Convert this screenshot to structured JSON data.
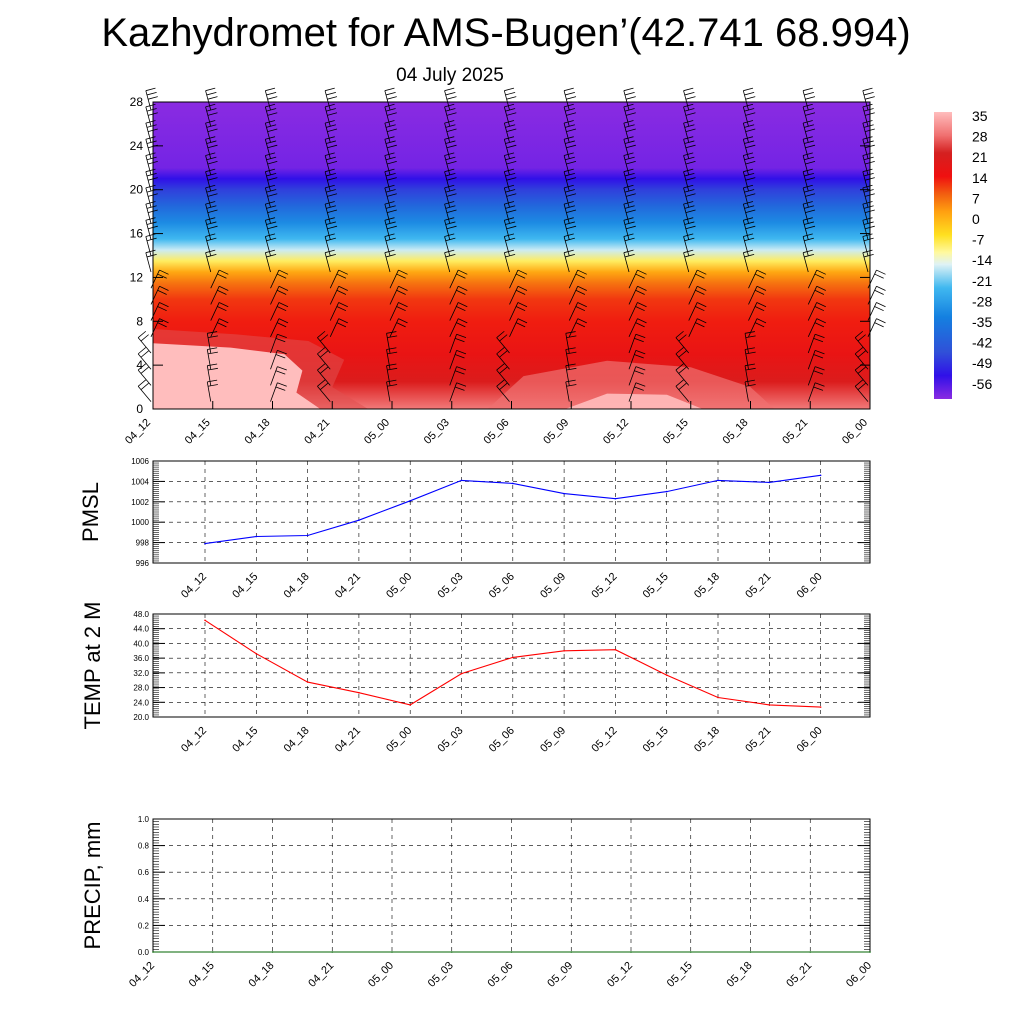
{
  "title": "Kazhydromet for AMS-Bugen’(42.741 68.994)",
  "subtitle": "04 July 2025",
  "time_labels": [
    "04_12",
    "04_15",
    "04_18",
    "04_21",
    "05_00",
    "05_03",
    "05_06",
    "05_09",
    "05_12",
    "05_15",
    "05_18",
    "05_21",
    "06_00"
  ],
  "colors": {
    "pmsl_line": "#0000ff",
    "temp_line": "#ff0000",
    "precip_line": "#006400",
    "grid": "#000000"
  },
  "chart_data": [
    {
      "id": "profile",
      "type": "heatmap",
      "title": "",
      "xlabel": "",
      "ylabel": "",
      "ylim": [
        0,
        28
      ],
      "yticks": [
        "0",
        "4",
        "8",
        "12",
        "16",
        "20",
        "24",
        "28"
      ],
      "categories": [
        "04_12",
        "04_15",
        "04_18",
        "04_21",
        "05_00",
        "05_03",
        "05_06",
        "05_09",
        "05_12",
        "05_15",
        "05_18",
        "05_21",
        "06_00"
      ],
      "overlay": "wind-barbs",
      "colorbar": {
        "labels": [
          "35",
          "28",
          "21",
          "14",
          "7",
          "0",
          "-7",
          "-14",
          "-21",
          "-28",
          "-35",
          "-42",
          "-49",
          "-56"
        ],
        "stops": [
          {
            "v": 38,
            "c": "#ffbdbd"
          },
          {
            "v": 30,
            "c": "#f07070"
          },
          {
            "v": 24,
            "c": "#d42020"
          },
          {
            "v": 16,
            "c": "#f01010"
          },
          {
            "v": 10,
            "c": "#f25e10"
          },
          {
            "v": 4,
            "c": "#ffa010"
          },
          {
            "v": -4,
            "c": "#ffe020"
          },
          {
            "v": -10,
            "c": "#fff9a0"
          },
          {
            "v": -14,
            "c": "#dff2f5"
          },
          {
            "v": -22,
            "c": "#40b8f0"
          },
          {
            "v": -32,
            "c": "#1480e0"
          },
          {
            "v": -44,
            "c": "#3050d8"
          },
          {
            "v": -52,
            "c": "#3010e8"
          },
          {
            "v": -60,
            "c": "#8a2be2"
          }
        ]
      }
    },
    {
      "id": "pmsl",
      "type": "line",
      "ylabel": "PMSL",
      "ylim": [
        996,
        1006
      ],
      "yticks": [
        "996",
        "998",
        "1000",
        "1002",
        "1004",
        "1006"
      ],
      "series": [
        {
          "values": [
            997.9,
            998.6,
            998.7,
            1000.2,
            1002.1,
            1004.1,
            1003.8,
            1002.8,
            1002.3,
            1003.0,
            1004.1,
            1003.9,
            1004.6
          ]
        }
      ]
    },
    {
      "id": "temp",
      "type": "line",
      "ylabel": "TEMP at 2 M",
      "ylim": [
        20,
        48
      ],
      "yticks": [
        "20.0",
        "24.0",
        "28.0",
        "32.0",
        "36.0",
        "40.0",
        "44.0",
        "48.0"
      ],
      "series": [
        {
          "values": [
            46.3,
            37.2,
            29.5,
            26.6,
            23.3,
            31.8,
            36.2,
            38.0,
            38.3,
            31.4,
            25.3,
            23.3,
            22.7
          ]
        }
      ]
    },
    {
      "id": "precip",
      "type": "line",
      "ylabel": "PRECIP, mm",
      "ylim": [
        0,
        1
      ],
      "yticks": [
        "0.0",
        "0.2",
        "0.4",
        "0.6",
        "0.8",
        "1.0"
      ],
      "series": [
        {
          "values": [
            0,
            0,
            0,
            0,
            0,
            0,
            0,
            0,
            0,
            0,
            0,
            0,
            0
          ]
        }
      ]
    }
  ]
}
